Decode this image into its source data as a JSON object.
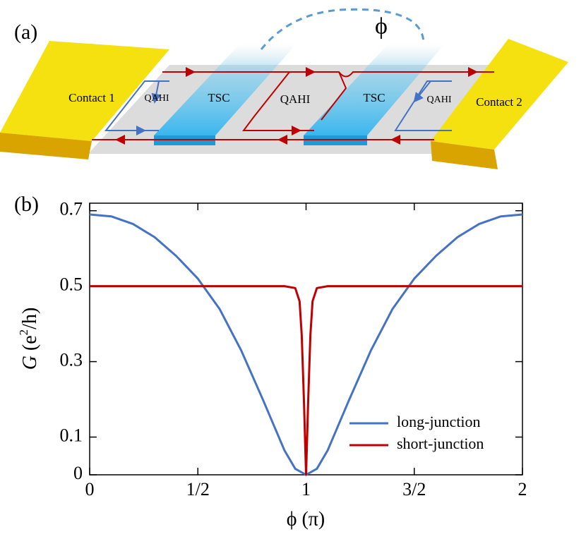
{
  "panel_a": {
    "label": "(a)",
    "contact1": "Contact 1",
    "contact2": "Contact 2",
    "qahi": [
      "QAHI",
      "QAHI",
      "QAHI"
    ],
    "tsc": [
      "TSC",
      "TSC"
    ],
    "phase": "ϕ"
  },
  "chart_data": {
    "type": "line",
    "panel_label": "(b)",
    "xlabel": "ϕ (π)",
    "ylabel_parts": [
      "G",
      " (e",
      "2",
      "/h)"
    ],
    "xlim": [
      0,
      2
    ],
    "ylim": [
      0,
      0.72
    ],
    "xticks": [
      0,
      {
        "value": 0.5,
        "label": "1/2"
      },
      1,
      {
        "value": 1.5,
        "label": "3/2"
      },
      2
    ],
    "yticks": [
      0,
      0.1,
      0.3,
      0.5,
      0.7
    ],
    "legend": "lower right",
    "series": [
      {
        "name": "long-junction",
        "color": "#4472c4",
        "x": [
          0,
          0.1,
          0.2,
          0.3,
          0.4,
          0.5,
          0.6,
          0.7,
          0.8,
          0.9,
          0.95,
          1,
          1.05,
          1.1,
          1.2,
          1.3,
          1.4,
          1.5,
          1.6,
          1.7,
          1.8,
          1.9,
          2
        ],
        "values": [
          0.69,
          0.685,
          0.665,
          0.63,
          0.58,
          0.52,
          0.44,
          0.33,
          0.2,
          0.065,
          0.016,
          0,
          0.016,
          0.065,
          0.2,
          0.33,
          0.44,
          0.52,
          0.58,
          0.63,
          0.665,
          0.685,
          0.69
        ]
      },
      {
        "name": "short-junction",
        "color": "#c00000",
        "x": [
          0,
          0.9,
          0.95,
          0.97,
          0.98,
          0.99,
          1,
          1.01,
          1.02,
          1.03,
          1.05,
          1.1,
          2
        ],
        "values": [
          0.5,
          0.5,
          0.495,
          0.46,
          0.37,
          0.2,
          0,
          0.2,
          0.37,
          0.46,
          0.495,
          0.5,
          0.5
        ]
      }
    ]
  }
}
